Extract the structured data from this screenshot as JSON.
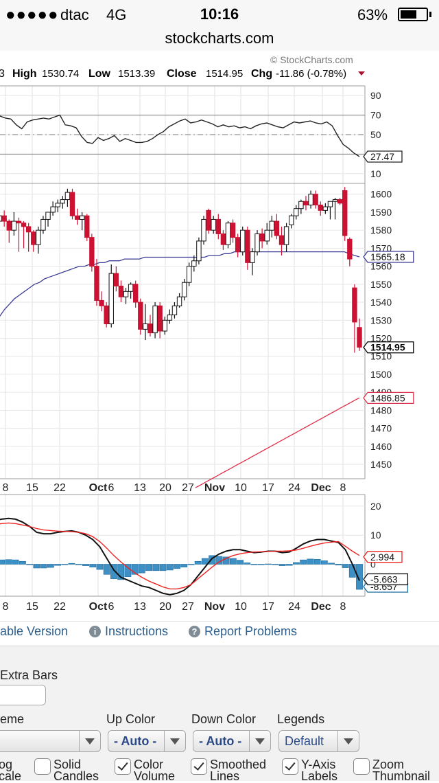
{
  "status_bar": {
    "signal": "●●●●●",
    "carrier": "dtac",
    "network": "4G",
    "time": "10:16",
    "battery_percent": "63%",
    "battery_level": 0.63
  },
  "browser": {
    "url": "stockcharts.com"
  },
  "chart_header": {
    "watermark": "© StockCharts.com",
    "cut_prefix": "3",
    "high_label": "High",
    "high_value": "1530.74",
    "low_label": "Low",
    "low_value": "1513.39",
    "close_label": "Close",
    "close_value": "1514.95",
    "chg_label": "Chg",
    "chg_value": "-11.86 (-0.78%)"
  },
  "chart_data": [
    {
      "type": "line",
      "panel": "rsi",
      "y_ticks": [
        "90",
        "70",
        "50",
        "30",
        "10"
      ],
      "ylim": [
        0,
        100
      ],
      "reference_lines": [
        70,
        50,
        30
      ],
      "last_value_label": "27.47",
      "series": [
        {
          "values": [
            69,
            69,
            67,
            66,
            60,
            56,
            63,
            65,
            66,
            67,
            66,
            68,
            70,
            60,
            59,
            57,
            48,
            42,
            41,
            47,
            44,
            46,
            49,
            43,
            46,
            44,
            42,
            42,
            43,
            46,
            50,
            53,
            58,
            61,
            64,
            66,
            62,
            63,
            65,
            63,
            61,
            58,
            60,
            58,
            59,
            57,
            58,
            56,
            59,
            61,
            62,
            60,
            58,
            57,
            60,
            63,
            62,
            63,
            64,
            62,
            61,
            63,
            59,
            49,
            40,
            36,
            31,
            27.47
          ]
        }
      ]
    },
    {
      "type": "candlestick",
      "panel": "price",
      "y_ticks": [
        "1600",
        "1590",
        "1580",
        "1570",
        "1560",
        "1550",
        "1540",
        "1530",
        "1520",
        "1510",
        "1500",
        "1490",
        "1480",
        "1470",
        "1460",
        "1450"
      ],
      "ylim": [
        1442,
        1606
      ],
      "candles": [
        {
          "o": 1588,
          "h": 1591,
          "l": 1583,
          "c": 1585
        },
        {
          "o": 1585,
          "h": 1590,
          "l": 1581,
          "c": 1588
        },
        {
          "o": 1588,
          "h": 1591,
          "l": 1582,
          "c": 1585
        },
        {
          "o": 1585,
          "h": 1586,
          "l": 1573,
          "c": 1580
        },
        {
          "o": 1580,
          "h": 1590,
          "l": 1577,
          "c": 1585
        },
        {
          "o": 1585,
          "h": 1587,
          "l": 1568,
          "c": 1584
        },
        {
          "o": 1584,
          "h": 1585,
          "l": 1570,
          "c": 1582
        },
        {
          "o": 1582,
          "h": 1584,
          "l": 1568,
          "c": 1579
        },
        {
          "o": 1579,
          "h": 1580,
          "l": 1568,
          "c": 1572
        },
        {
          "o": 1572,
          "h": 1582,
          "l": 1567,
          "c": 1580
        },
        {
          "o": 1580,
          "h": 1588,
          "l": 1578,
          "c": 1586
        },
        {
          "o": 1586,
          "h": 1590,
          "l": 1582,
          "c": 1590
        },
        {
          "o": 1590,
          "h": 1596,
          "l": 1588,
          "c": 1593
        },
        {
          "o": 1593,
          "h": 1597,
          "l": 1590,
          "c": 1595
        },
        {
          "o": 1595,
          "h": 1599,
          "l": 1592,
          "c": 1597
        },
        {
          "o": 1597,
          "h": 1603,
          "l": 1593,
          "c": 1601
        },
        {
          "o": 1601,
          "h": 1603,
          "l": 1586,
          "c": 1588
        },
        {
          "o": 1588,
          "h": 1592,
          "l": 1583,
          "c": 1586
        },
        {
          "o": 1586,
          "h": 1590,
          "l": 1580,
          "c": 1588
        },
        {
          "o": 1588,
          "h": 1589,
          "l": 1574,
          "c": 1576
        },
        {
          "o": 1576,
          "h": 1578,
          "l": 1557,
          "c": 1560
        },
        {
          "o": 1560,
          "h": 1564,
          "l": 1538,
          "c": 1541
        },
        {
          "o": 1541,
          "h": 1546,
          "l": 1535,
          "c": 1538
        },
        {
          "o": 1538,
          "h": 1540,
          "l": 1526,
          "c": 1528
        },
        {
          "o": 1528,
          "h": 1561,
          "l": 1526,
          "c": 1556
        },
        {
          "o": 1556,
          "h": 1560,
          "l": 1546,
          "c": 1549
        },
        {
          "o": 1549,
          "h": 1552,
          "l": 1540,
          "c": 1543
        },
        {
          "o": 1543,
          "h": 1548,
          "l": 1539,
          "c": 1546
        },
        {
          "o": 1546,
          "h": 1551,
          "l": 1542,
          "c": 1550
        },
        {
          "o": 1550,
          "h": 1552,
          "l": 1537,
          "c": 1540
        },
        {
          "o": 1540,
          "h": 1542,
          "l": 1522,
          "c": 1525
        },
        {
          "o": 1525,
          "h": 1539,
          "l": 1519,
          "c": 1528
        },
        {
          "o": 1528,
          "h": 1533,
          "l": 1521,
          "c": 1523
        },
        {
          "o": 1523,
          "h": 1540,
          "l": 1520,
          "c": 1538
        },
        {
          "o": 1538,
          "h": 1540,
          "l": 1520,
          "c": 1524
        },
        {
          "o": 1524,
          "h": 1532,
          "l": 1522,
          "c": 1530
        },
        {
          "o": 1530,
          "h": 1536,
          "l": 1528,
          "c": 1533
        },
        {
          "o": 1533,
          "h": 1540,
          "l": 1531,
          "c": 1538
        },
        {
          "o": 1538,
          "h": 1545,
          "l": 1537,
          "c": 1543
        },
        {
          "o": 1543,
          "h": 1553,
          "l": 1541,
          "c": 1551
        },
        {
          "o": 1551,
          "h": 1562,
          "l": 1549,
          "c": 1560
        },
        {
          "o": 1560,
          "h": 1566,
          "l": 1557,
          "c": 1563
        },
        {
          "o": 1563,
          "h": 1576,
          "l": 1561,
          "c": 1574
        },
        {
          "o": 1574,
          "h": 1588,
          "l": 1572,
          "c": 1586
        },
        {
          "o": 1591,
          "h": 1592,
          "l": 1578,
          "c": 1580
        },
        {
          "o": 1580,
          "h": 1588,
          "l": 1578,
          "c": 1586
        },
        {
          "o": 1586,
          "h": 1589,
          "l": 1575,
          "c": 1578
        },
        {
          "o": 1578,
          "h": 1580,
          "l": 1569,
          "c": 1572
        },
        {
          "o": 1572,
          "h": 1585,
          "l": 1570,
          "c": 1584
        },
        {
          "o": 1584,
          "h": 1586,
          "l": 1573,
          "c": 1576
        },
        {
          "o": 1576,
          "h": 1578,
          "l": 1565,
          "c": 1568
        },
        {
          "o": 1568,
          "h": 1582,
          "l": 1566,
          "c": 1580
        },
        {
          "o": 1580,
          "h": 1582,
          "l": 1558,
          "c": 1562
        },
        {
          "o": 1562,
          "h": 1570,
          "l": 1555,
          "c": 1568
        },
        {
          "o": 1568,
          "h": 1580,
          "l": 1566,
          "c": 1578
        },
        {
          "o": 1578,
          "h": 1581,
          "l": 1570,
          "c": 1574
        },
        {
          "o": 1574,
          "h": 1584,
          "l": 1572,
          "c": 1580
        },
        {
          "o": 1580,
          "h": 1588,
          "l": 1576,
          "c": 1585
        },
        {
          "o": 1585,
          "h": 1589,
          "l": 1575,
          "c": 1577
        },
        {
          "o": 1577,
          "h": 1582,
          "l": 1566,
          "c": 1572
        },
        {
          "o": 1572,
          "h": 1584,
          "l": 1568,
          "c": 1582
        },
        {
          "o": 1583,
          "h": 1589,
          "l": 1581,
          "c": 1588
        },
        {
          "o": 1588,
          "h": 1594,
          "l": 1586,
          "c": 1592
        },
        {
          "o": 1592,
          "h": 1597,
          "l": 1589,
          "c": 1596
        },
        {
          "o": 1596,
          "h": 1599,
          "l": 1591,
          "c": 1594
        },
        {
          "o": 1594,
          "h": 1602,
          "l": 1592,
          "c": 1600
        },
        {
          "o": 1600,
          "h": 1602,
          "l": 1592,
          "c": 1594
        },
        {
          "o": 1594,
          "h": 1596,
          "l": 1588,
          "c": 1591
        },
        {
          "o": 1591,
          "h": 1595,
          "l": 1589,
          "c": 1593
        },
        {
          "o": 1593,
          "h": 1596,
          "l": 1586,
          "c": 1596
        },
        {
          "o": 1596,
          "h": 1598,
          "l": 1586,
          "c": 1597
        },
        {
          "o": 1597,
          "h": 1598,
          "l": 1594,
          "c": 1595
        },
        {
          "o": 1602,
          "h": 1604,
          "l": 1574,
          "c": 1577
        },
        {
          "o": 1575,
          "h": 1576,
          "l": 1560,
          "c": 1564
        },
        {
          "o": 1548,
          "h": 1550,
          "l": 1512,
          "c": 1529
        },
        {
          "o": 1526,
          "h": 1531,
          "l": 1513,
          "c": 1515
        }
      ],
      "overlays": [
        {
          "label": "1565.18",
          "color": "#3c3c96",
          "values": [
            1528,
            1532,
            1536,
            1539,
            1542,
            1544,
            1546,
            1548,
            1550,
            1551,
            1553,
            1554,
            1555,
            1556,
            1557,
            1558,
            1559,
            1560,
            1560,
            1561,
            1561,
            1562,
            1562,
            1563,
            1563,
            1563,
            1564,
            1564,
            1564,
            1564,
            1565,
            1565,
            1565,
            1565,
            1565,
            1565,
            1565,
            1565,
            1565,
            1565,
            1565,
            1565,
            1565,
            1566,
            1566,
            1566,
            1567,
            1567,
            1568,
            1568,
            1568,
            1568,
            1568,
            1568,
            1568,
            1568,
            1568,
            1568,
            1568,
            1568,
            1568,
            1568,
            1568,
            1568,
            1568,
            1568,
            1568,
            1568,
            1568,
            1568,
            1568,
            1567,
            1566,
            1565.18
          ]
        },
        {
          "label": "1486.85",
          "color": "#e0304a",
          "values": [
            1437,
            1438,
            1439,
            1440,
            1441,
            1442,
            1443,
            1444,
            1445,
            1446,
            1447,
            1448,
            1449,
            1450,
            1451,
            1452,
            1453,
            1454,
            1455,
            1456,
            1457,
            1458,
            1459,
            1460,
            1461,
            1462,
            1463,
            1464,
            1465,
            1466,
            1467,
            1468,
            1469,
            1470,
            1471,
            1472,
            1473,
            1474,
            1475,
            1476,
            1477,
            1478,
            1479,
            1480,
            1481,
            1482,
            1483,
            1484,
            1485,
            1486,
            1486.85
          ]
        }
      ],
      "last_value_label": "1514.95"
    },
    {
      "type": "line",
      "panel": "macd",
      "y_ticks": [
        "20",
        "10",
        "0"
      ],
      "ylim": [
        -11,
        24
      ],
      "series": [
        {
          "color": "#111111",
          "label": "-5.663",
          "values": [
            15,
            15.5,
            15.8,
            15.5,
            14.5,
            13,
            11,
            10.5,
            10.5,
            11,
            11.3,
            11.5,
            11,
            10,
            8.5,
            6,
            2,
            -2,
            -4.5,
            -5.5,
            -6.5,
            -7.5,
            -8,
            -9,
            -10,
            -10.5,
            -10,
            -9,
            -7,
            -4,
            -1,
            2,
            3.5,
            4.5,
            5,
            5,
            4.5,
            4,
            4.2,
            4.5,
            4.5,
            4,
            4.2,
            5.5,
            7,
            8,
            8.5,
            8.5,
            8,
            7.5,
            5,
            0,
            -5.663
          ]
        },
        {
          "color": "#ee2222",
          "label": "2.994",
          "values": [
            13.5,
            14,
            14.2,
            14,
            13.5,
            13,
            12.3,
            11.8,
            11.6,
            11.4,
            11.3,
            11.2,
            11,
            10.5,
            9.5,
            7.8,
            5.5,
            3,
            0.8,
            -1.2,
            -3,
            -4.5,
            -5.8,
            -6.8,
            -7.8,
            -8.5,
            -8.5,
            -8,
            -7,
            -5,
            -3,
            -1,
            0.8,
            2,
            3,
            3.6,
            4,
            4.2,
            4.3,
            4.4,
            4.5,
            4.5,
            4.6,
            4.9,
            5.5,
            6.2,
            6.8,
            7.3,
            7.6,
            7.8,
            6.2,
            4.5,
            2.994
          ]
        }
      ],
      "histogram": [
        1.5,
        1.5,
        1.6,
        1.5,
        1,
        0,
        -1.3,
        -1.3,
        -1.1,
        -0.4,
        0,
        0.3,
        0,
        -0.5,
        -1,
        -1.8,
        -3.5,
        -5,
        -5.3,
        -4.3,
        -3.5,
        -3,
        -2.2,
        -2.2,
        -2.2,
        -2,
        -1.5,
        -1,
        0,
        1,
        2,
        3,
        2.7,
        2.5,
        2,
        1.4,
        0.5,
        -0.2,
        -0.1,
        0.1,
        0,
        -0.5,
        -0.4,
        0.6,
        1.5,
        1.8,
        1.7,
        1.2,
        0.4,
        -0.3,
        -1.2,
        -4.5,
        -8.657
      ],
      "last_value_labels": [
        "-5.663",
        "-8.657"
      ],
      "extra_label": "2.994"
    }
  ],
  "x_axis": {
    "labels": [
      "8",
      "15",
      "22",
      "Oct",
      "6",
      "13",
      "20",
      "27",
      "Nov",
      "10",
      "17",
      "24",
      "Dec",
      "8"
    ]
  },
  "links": [
    {
      "icon": "",
      "text": "able Version"
    },
    {
      "icon": "i",
      "text": "Instructions"
    },
    {
      "icon": "?",
      "text": "Report Problems"
    }
  ],
  "controls": {
    "extra_bars_label": "Extra Bars",
    "extra_bars_value": "",
    "theme_label": "eme",
    "up_color_label": "Up Color",
    "up_color_value": "- Auto -",
    "down_color_label": "Down Color",
    "down_color_value": "- Auto -",
    "legends_label": "Legends",
    "legends_value": "Default",
    "checkboxes": [
      {
        "line1": "og",
        "line2": "cale",
        "checked": false
      },
      {
        "line1": "Solid",
        "line2": "Candles",
        "checked": false
      },
      {
        "line1": "Color",
        "line2": "Volume",
        "checked": true
      },
      {
        "line1": "Smoothed",
        "line2": "Lines",
        "checked": true
      },
      {
        "line1": "Y-Axis",
        "line2": "Labels",
        "checked": true
      },
      {
        "line1": "Zoom",
        "line2": "Thumbnail",
        "checked": false
      }
    ]
  },
  "colors": {
    "up": "#ffffff",
    "down": "#cc1133",
    "histogram": "#3d8fc4",
    "grid": "#dddddd"
  }
}
